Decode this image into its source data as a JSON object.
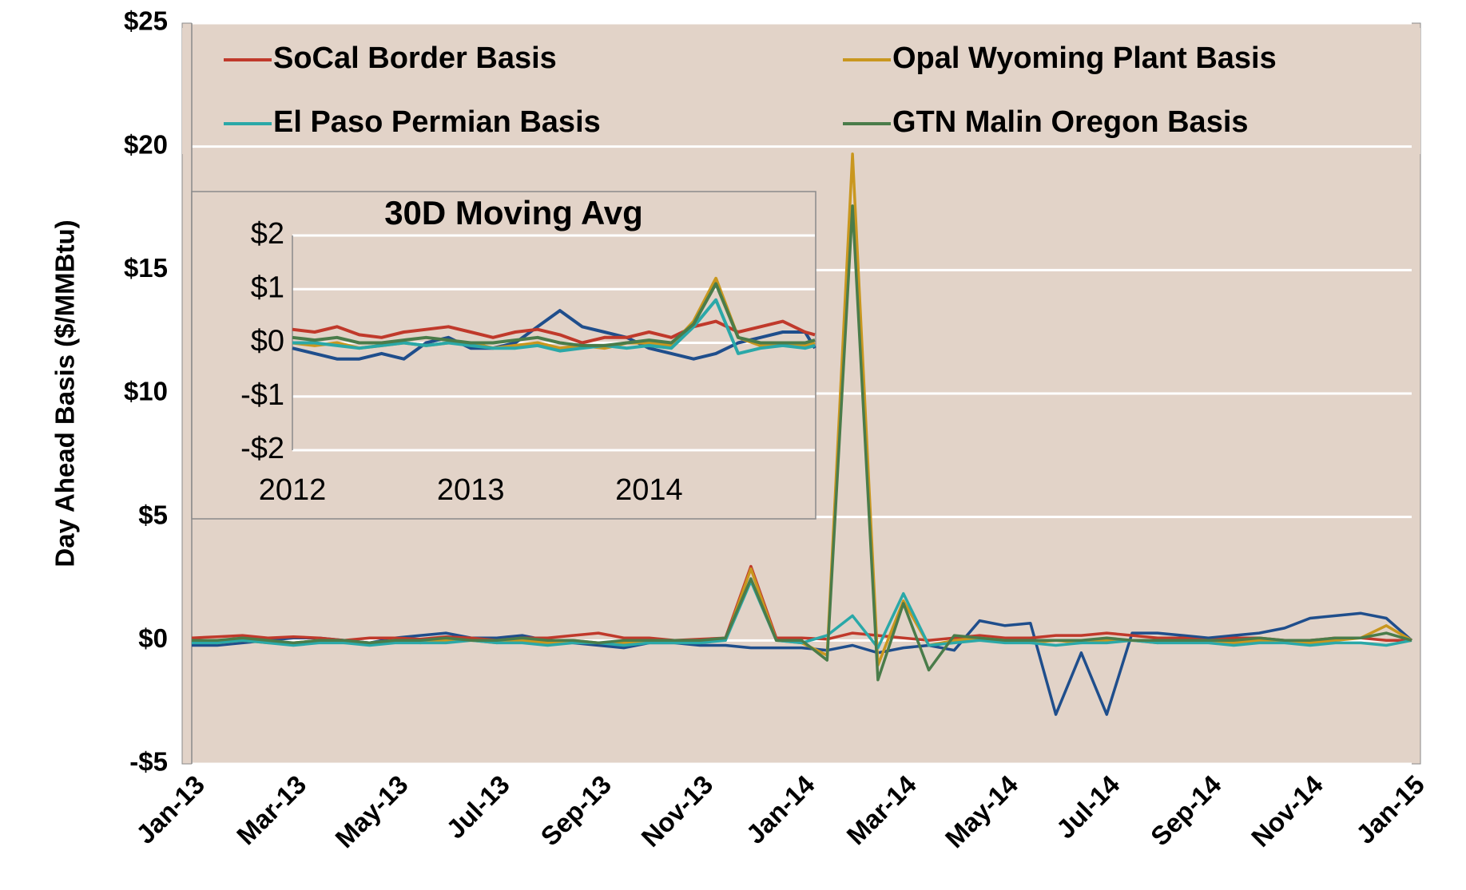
{
  "chart_data": [
    {
      "type": "line",
      "y_label": "Day Ahead Basis ($/MMBtu)",
      "categories": [
        "Jan-13",
        null,
        null,
        null,
        "Mar-13",
        null,
        null,
        null,
        "May-13",
        null,
        null,
        null,
        "Jul-13",
        null,
        null,
        null,
        "Sep-13",
        null,
        null,
        null,
        "Nov-13",
        null,
        null,
        null,
        "Jan-14",
        null,
        null,
        null,
        "Mar-14",
        null,
        null,
        null,
        "May-14",
        null,
        null,
        null,
        "Jul-14",
        null,
        null,
        null,
        "Sep-14",
        null,
        null,
        null,
        "Nov-14",
        null,
        null,
        null,
        "Jan-15"
      ],
      "ylim": [
        -5,
        25
      ],
      "yticks": [
        {
          "value": -5,
          "label": "-$5"
        },
        {
          "value": 0,
          "label": "$0"
        },
        {
          "value": 5,
          "label": "$5"
        },
        {
          "value": 10,
          "label": "$10"
        },
        {
          "value": 15,
          "label": "$15"
        },
        {
          "value": 20,
          "label": "$20"
        },
        {
          "value": 25,
          "label": "$25"
        }
      ],
      "grid": true,
      "legend": "top",
      "series": [
        {
          "color": "#1f4e8c",
          "values": [
            -0.2,
            -0.2,
            -0.1,
            0.0,
            0.1,
            0.1,
            0.0,
            -0.1,
            0.1,
            0.2,
            0.3,
            0.1,
            0.1,
            0.2,
            0.0,
            -0.1,
            -0.2,
            -0.3,
            -0.1,
            -0.1,
            -0.2,
            -0.2,
            -0.3,
            -0.3,
            -0.3,
            -0.4,
            -0.2,
            -0.5,
            -0.3,
            -0.2,
            -0.4,
            0.8,
            0.6,
            0.7,
            -3.0,
            -0.5,
            -3.0,
            0.3,
            0.3,
            0.2,
            0.1,
            0.2,
            0.3,
            0.5,
            0.9,
            1.0,
            1.1,
            0.9,
            0.0
          ]
        },
        {
          "name": "SoCal Border Basis",
          "color": "#c0392b",
          "values": [
            0.1,
            0.15,
            0.2,
            0.1,
            0.15,
            0.1,
            0.0,
            0.1,
            0.1,
            0.05,
            0.15,
            0.1,
            0.0,
            0.1,
            0.1,
            0.2,
            0.3,
            0.1,
            0.1,
            0.0,
            0.05,
            0.1,
            3.0,
            0.1,
            0.1,
            0.05,
            0.3,
            0.2,
            0.1,
            0.0,
            0.1,
            0.2,
            0.1,
            0.1,
            0.2,
            0.2,
            0.3,
            0.2,
            0.1,
            0.1,
            0.0,
            0.1,
            0.1,
            0.0,
            0.0,
            0.1,
            0.1,
            0.0,
            0.0
          ]
        },
        {
          "name": "Opal Wyoming Plant Basis",
          "color": "#c9971f",
          "values": [
            0.0,
            -0.1,
            0.0,
            -0.1,
            -0.1,
            0.0,
            -0.1,
            -0.1,
            0.0,
            -0.1,
            0.0,
            0.0,
            -0.1,
            0.0,
            -0.1,
            0.0,
            -0.1,
            -0.1,
            0.0,
            -0.1,
            0.0,
            0.0,
            2.9,
            0.0,
            -0.1,
            -0.6,
            19.7,
            -1.0,
            1.6,
            -0.2,
            0.0,
            0.1,
            0.0,
            -0.1,
            0.0,
            -0.1,
            0.0,
            0.0,
            -0.1,
            0.0,
            0.0,
            -0.1,
            0.0,
            0.0,
            -0.1,
            0.0,
            0.1,
            0.6,
            0.0
          ]
        },
        {
          "name": "El Paso Permian Basis",
          "color": "#2aa8a8",
          "values": [
            -0.1,
            -0.1,
            0.0,
            -0.1,
            -0.2,
            -0.1,
            -0.1,
            -0.2,
            -0.1,
            -0.1,
            -0.1,
            0.0,
            -0.1,
            -0.1,
            -0.2,
            -0.1,
            -0.1,
            -0.2,
            -0.1,
            -0.1,
            -0.1,
            0.0,
            2.4,
            0.0,
            -0.1,
            0.2,
            1.0,
            -0.3,
            1.9,
            -0.2,
            -0.1,
            0.0,
            -0.1,
            -0.1,
            -0.2,
            -0.1,
            -0.1,
            0.0,
            -0.1,
            -0.1,
            -0.1,
            -0.2,
            -0.1,
            -0.1,
            -0.2,
            -0.1,
            -0.1,
            -0.2,
            0.0
          ]
        },
        {
          "name": "GTN Malin Oregon Basis",
          "color": "#4a7c4a",
          "values": [
            0.0,
            0.0,
            0.1,
            0.0,
            -0.1,
            0.0,
            0.0,
            -0.1,
            0.0,
            0.0,
            0.1,
            0.0,
            0.0,
            0.1,
            0.0,
            0.0,
            -0.1,
            0.0,
            0.0,
            0.0,
            0.0,
            0.1,
            2.5,
            0.0,
            0.0,
            -0.8,
            17.6,
            -1.6,
            1.5,
            -1.2,
            0.2,
            0.1,
            0.0,
            0.0,
            0.0,
            0.0,
            0.1,
            0.0,
            0.0,
            0.0,
            0.0,
            0.0,
            0.1,
            0.0,
            0.0,
            0.1,
            0.1,
            0.3,
            0.0
          ]
        }
      ]
    },
    {
      "type": "line",
      "title": "30D Moving Avg",
      "x": [
        2012.0,
        2012.125,
        2012.25,
        2012.375,
        2012.5,
        2012.625,
        2012.75,
        2012.875,
        2013.0,
        2013.125,
        2013.25,
        2013.375,
        2013.5,
        2013.625,
        2013.75,
        2013.875,
        2014.0,
        2014.125,
        2014.25,
        2014.375,
        2014.5,
        2014.625,
        2014.75,
        2014.875,
        2014.93
      ],
      "xlim": [
        2012,
        2014.93
      ],
      "xticks": [
        2012,
        2013,
        2014
      ],
      "ylim": [
        -2,
        2
      ],
      "yticks": [
        {
          "value": -2,
          "label": "-$2"
        },
        {
          "value": -1,
          "label": "-$1"
        },
        {
          "value": 0,
          "label": "$0"
        },
        {
          "value": 1,
          "label": "$1"
        },
        {
          "value": 2,
          "label": "$2"
        }
      ],
      "grid": true,
      "series": [
        {
          "color": "#1f4e8c",
          "values": [
            -0.1,
            -0.2,
            -0.3,
            -0.3,
            -0.2,
            -0.3,
            0.0,
            0.1,
            -0.1,
            -0.1,
            0.0,
            0.3,
            0.6,
            0.3,
            0.2,
            0.1,
            -0.1,
            -0.2,
            -0.3,
            -0.2,
            0.0,
            0.1,
            0.2,
            0.2,
            -0.1
          ]
        },
        {
          "color": "#c0392b",
          "values": [
            0.25,
            0.2,
            0.3,
            0.15,
            0.1,
            0.2,
            0.25,
            0.3,
            0.2,
            0.1,
            0.2,
            0.25,
            0.15,
            0.0,
            0.1,
            0.1,
            0.2,
            0.1,
            0.3,
            0.4,
            0.2,
            0.3,
            0.4,
            0.2,
            0.15
          ]
        },
        {
          "color": "#c9971f",
          "values": [
            0.0,
            -0.05,
            0.0,
            -0.1,
            -0.05,
            0.0,
            -0.05,
            0.0,
            0.0,
            -0.1,
            -0.05,
            0.0,
            -0.1,
            -0.05,
            -0.1,
            0.0,
            0.0,
            -0.05,
            0.4,
            1.2,
            0.1,
            -0.05,
            0.0,
            -0.05,
            0.0
          ]
        },
        {
          "color": "#2aa8a8",
          "values": [
            0.0,
            0.0,
            -0.05,
            -0.1,
            -0.05,
            0.0,
            -0.05,
            0.0,
            -0.05,
            -0.1,
            -0.1,
            -0.05,
            -0.15,
            -0.1,
            -0.05,
            -0.1,
            -0.05,
            -0.1,
            0.3,
            0.8,
            -0.2,
            -0.1,
            -0.05,
            -0.1,
            -0.05
          ]
        },
        {
          "color": "#4a7c4a",
          "values": [
            0.1,
            0.05,
            0.1,
            0.0,
            0.0,
            0.05,
            0.1,
            0.05,
            0.0,
            0.0,
            0.05,
            0.1,
            0.0,
            -0.05,
            -0.05,
            0.0,
            0.05,
            0.0,
            0.35,
            1.1,
            0.1,
            0.0,
            0.0,
            0.0,
            0.05
          ]
        }
      ]
    }
  ]
}
